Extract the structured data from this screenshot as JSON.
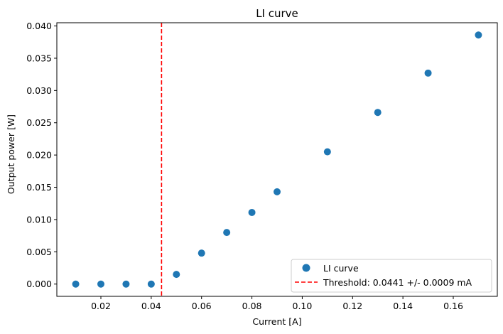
{
  "chart_data": {
    "type": "scatter",
    "title": "LI curve",
    "xlabel": "Current [A]",
    "ylabel": "Output power [W]",
    "xlim": [
      0.0025,
      0.1775
    ],
    "ylim": [
      -0.0019,
      0.0405
    ],
    "xticks": [
      0.02,
      0.04,
      0.06,
      0.08,
      0.1,
      0.12,
      0.14,
      0.16
    ],
    "xtick_labels": [
      "0.02",
      "0.04",
      "0.06",
      "0.08",
      "0.10",
      "0.12",
      "0.14",
      "0.16"
    ],
    "yticks": [
      0.0,
      0.005,
      0.01,
      0.015,
      0.02,
      0.025,
      0.03,
      0.035,
      0.04
    ],
    "ytick_labels": [
      "0.000",
      "0.005",
      "0.010",
      "0.015",
      "0.020",
      "0.025",
      "0.030",
      "0.035",
      "0.040"
    ],
    "grid": false,
    "legend_position": "bottom-right",
    "series": [
      {
        "name": "LI curve",
        "kind": "scatter",
        "color": "#1f77b4",
        "x": [
          0.01,
          0.02,
          0.03,
          0.04,
          0.05,
          0.06,
          0.07,
          0.08,
          0.09,
          0.11,
          0.13,
          0.15,
          0.17
        ],
        "y": [
          0.0,
          0.0,
          0.0,
          0.0,
          0.0015,
          0.0048,
          0.008,
          0.0111,
          0.0143,
          0.0205,
          0.0266,
          0.0327,
          0.0386
        ]
      },
      {
        "name": "Threshold: 0.0441 +/- 0.0009 mA",
        "kind": "vline",
        "color": "#ff0000",
        "x": 0.0441
      }
    ]
  }
}
